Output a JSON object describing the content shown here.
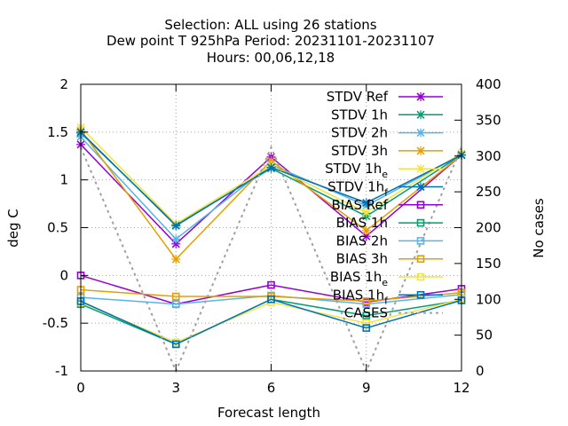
{
  "chart_data": {
    "type": "line",
    "title_lines": [
      "Selection: ALL using    26 stations",
      "Dew point T 925hPa   Period: 20231101-20231107",
      "Hours:  00,06,12,18"
    ],
    "xlabel": "Forecast length",
    "ylabel": "deg C",
    "y2label": "No cases",
    "x": [
      0,
      3,
      6,
      9,
      12
    ],
    "x_ticks": [
      "0",
      "3",
      "6",
      "9",
      "12"
    ],
    "y_ticks": [
      "2",
      "1.5",
      "1",
      "0.5",
      "0",
      "-0.5",
      "-1"
    ],
    "y2_ticks": [
      "400",
      "350",
      "300",
      "250",
      "200",
      "150",
      "100",
      "50",
      "0"
    ],
    "ylim": [
      -1,
      2
    ],
    "y2lim": [
      0,
      400
    ],
    "grid": true,
    "legend_position": "top-right",
    "series": [
      {
        "name": "STDV Ref",
        "sub": "",
        "color": "#9400d3",
        "marker": "x",
        "values": [
          1.37,
          0.33,
          1.24,
          0.41,
          1.26
        ]
      },
      {
        "name": "STDV 1h",
        "sub": "",
        "color": "#009e73",
        "marker": "x",
        "values": [
          1.49,
          0.53,
          1.12,
          0.62,
          1.26
        ]
      },
      {
        "name": "STDV 2h",
        "sub": "",
        "color": "#56b4e9",
        "marker": "x",
        "values": [
          1.45,
          0.38,
          1.16,
          0.73,
          1.26
        ]
      },
      {
        "name": "STDV 3h",
        "sub": "",
        "color": "#e69f00",
        "marker": "x",
        "values": [
          1.52,
          0.17,
          1.2,
          0.47,
          1.26
        ]
      },
      {
        "name": "STDV 1h",
        "sub": "e",
        "color": "#f0e442",
        "marker": "x",
        "values": [
          1.55,
          0.54,
          1.15,
          0.66,
          1.28
        ]
      },
      {
        "name": "STDV 1h",
        "sub": "f",
        "color": "#0072b2",
        "marker": "x",
        "values": [
          1.5,
          0.52,
          1.13,
          0.76,
          1.26
        ]
      },
      {
        "name": "BIAS Ref",
        "sub": "",
        "color": "#9400d3",
        "marker": "s",
        "values": [
          0.0,
          -0.3,
          -0.1,
          -0.28,
          -0.14
        ]
      },
      {
        "name": "BIAS 1h",
        "sub": "",
        "color": "#009e73",
        "marker": "s",
        "values": [
          -0.3,
          -0.72,
          -0.25,
          -0.42,
          -0.26
        ]
      },
      {
        "name": "BIAS 2h",
        "sub": "",
        "color": "#56b4e9",
        "marker": "s",
        "values": [
          -0.23,
          -0.3,
          -0.21,
          -0.3,
          -0.2
        ]
      },
      {
        "name": "BIAS 3h",
        "sub": "",
        "color": "#e69f00",
        "marker": "s",
        "values": [
          -0.15,
          -0.22,
          -0.22,
          -0.27,
          -0.18
        ]
      },
      {
        "name": "BIAS 1h",
        "sub": "e",
        "color": "#f0e442",
        "marker": "s",
        "values": [
          -0.28,
          -0.7,
          -0.28,
          -0.5,
          -0.25
        ]
      },
      {
        "name": "BIAS 1h",
        "sub": "f",
        "color": "#0072b2",
        "marker": "s",
        "values": [
          -0.27,
          -0.72,
          -0.25,
          -0.55,
          -0.26
        ]
      },
      {
        "name": "CASES",
        "sub": "",
        "color": "#a0a0a0",
        "marker": "none",
        "dashed": true,
        "axis": "y2",
        "values": [
          312,
          0,
          312,
          0,
          312
        ]
      }
    ]
  }
}
